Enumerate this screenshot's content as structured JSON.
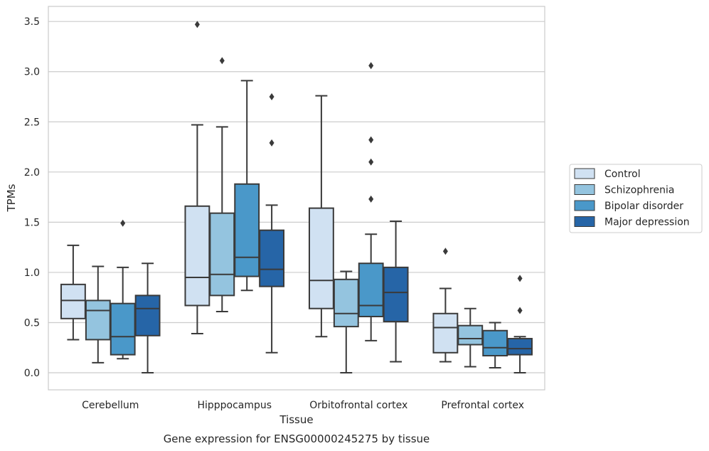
{
  "chart_data": {
    "type": "box",
    "xlabel": "Tissue",
    "ylabel": "TPMs",
    "caption": "Gene expression for ENSG00000245275 by tissue",
    "ylim": [
      -0.17,
      3.65
    ],
    "yticks": [
      0.0,
      0.5,
      1.0,
      1.5,
      2.0,
      2.5,
      3.0,
      3.5
    ],
    "ytick_labels": [
      "0.0",
      "0.5",
      "1.0",
      "1.5",
      "2.0",
      "2.5",
      "3.0",
      "3.5"
    ],
    "grid": "horizontal",
    "legend_position": "right",
    "categories": [
      "Cerebellum",
      "Hipppocampus",
      "Orbitofrontal cortex",
      "Prefrontal cortex"
    ],
    "series": [
      {
        "name": "Control",
        "color": "#d0e1f2",
        "boxes": [
          {
            "whislo": 0.33,
            "q1": 0.54,
            "med": 0.72,
            "q3": 0.88,
            "whishi": 1.27,
            "fliers": []
          },
          {
            "whislo": 0.39,
            "q1": 0.67,
            "med": 0.95,
            "q3": 1.66,
            "whishi": 2.47,
            "fliers": [
              3.47
            ]
          },
          {
            "whislo": 0.36,
            "q1": 0.64,
            "med": 0.92,
            "q3": 1.64,
            "whishi": 2.76,
            "fliers": []
          },
          {
            "whislo": 0.11,
            "q1": 0.2,
            "med": 0.45,
            "q3": 0.59,
            "whishi": 0.84,
            "fliers": [
              1.21
            ]
          }
        ]
      },
      {
        "name": "Schizophrenia",
        "color": "#94c4df",
        "boxes": [
          {
            "whislo": 0.1,
            "q1": 0.33,
            "med": 0.62,
            "q3": 0.72,
            "whishi": 1.06,
            "fliers": []
          },
          {
            "whislo": 0.61,
            "q1": 0.77,
            "med": 0.98,
            "q3": 1.59,
            "whishi": 2.45,
            "fliers": [
              3.11
            ]
          },
          {
            "whislo": 0.0,
            "q1": 0.46,
            "med": 0.59,
            "q3": 0.93,
            "whishi": 1.01,
            "fliers": []
          },
          {
            "whislo": 0.06,
            "q1": 0.28,
            "med": 0.34,
            "q3": 0.47,
            "whishi": 0.64,
            "fliers": []
          }
        ]
      },
      {
        "name": "Bipolar disorder",
        "color": "#4a98c9",
        "boxes": [
          {
            "whislo": 0.14,
            "q1": 0.18,
            "med": 0.36,
            "q3": 0.69,
            "whishi": 1.05,
            "fliers": [
              1.49
            ]
          },
          {
            "whislo": 0.82,
            "q1": 0.96,
            "med": 1.15,
            "q3": 1.88,
            "whishi": 2.91,
            "fliers": []
          },
          {
            "whislo": 0.32,
            "q1": 0.56,
            "med": 0.67,
            "q3": 1.09,
            "whishi": 1.38,
            "fliers": [
              1.73,
              2.1,
              2.32,
              3.06
            ]
          },
          {
            "whislo": 0.05,
            "q1": 0.17,
            "med": 0.25,
            "q3": 0.42,
            "whishi": 0.5,
            "fliers": []
          }
        ]
      },
      {
        "name": "Major depression",
        "color": "#2665a7",
        "boxes": [
          {
            "whislo": 0.0,
            "q1": 0.37,
            "med": 0.64,
            "q3": 0.77,
            "whishi": 1.09,
            "fliers": []
          },
          {
            "whislo": 0.2,
            "q1": 0.86,
            "med": 1.03,
            "q3": 1.42,
            "whishi": 1.67,
            "fliers": [
              2.29,
              2.75
            ]
          },
          {
            "whislo": 0.11,
            "q1": 0.51,
            "med": 0.8,
            "q3": 1.05,
            "whishi": 1.51,
            "fliers": []
          },
          {
            "whislo": 0.0,
            "q1": 0.18,
            "med": 0.24,
            "q3": 0.34,
            "whishi": 0.36,
            "fliers": [
              0.62,
              0.94
            ]
          }
        ]
      }
    ]
  }
}
